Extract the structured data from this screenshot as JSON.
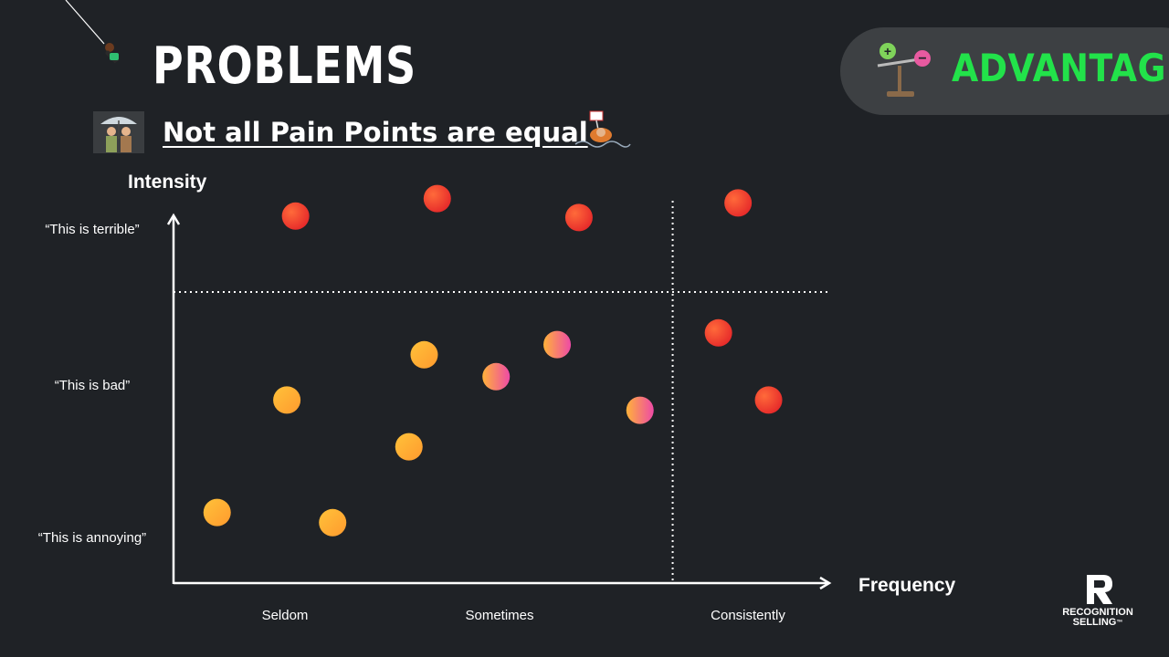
{
  "header": {
    "title": "PROBLEMS",
    "subtitle": "Not all Pain Points are equal",
    "badge_label": "ADVANTAGE",
    "brand_line1": "RECOGNITION",
    "brand_line2": "SELLING",
    "brand_mark": "™"
  },
  "colors": {
    "background": "#1f2226",
    "badge_text": "#22e24a",
    "badge_bg": "#3d4043",
    "dot_red": "#f0372a",
    "dot_orange": "#ffb234",
    "dot_pink": "#f2539a"
  },
  "chart_data": {
    "type": "scatter",
    "xlabel": "Frequency",
    "ylabel": "Intensity",
    "x_ticks": [
      "Seldom",
      "Sometimes",
      "Consistently"
    ],
    "y_ticks": [
      "“This is annoying”",
      "“This is bad”",
      "“This is terrible”"
    ],
    "xlim": [
      0,
      3
    ],
    "ylim": [
      0,
      3
    ],
    "grid": false,
    "threshold_lines": {
      "x": 2.29,
      "y": 2.0
    },
    "points": [
      {
        "x": 0.56,
        "y": 2.52,
        "color": "red"
      },
      {
        "x": 1.21,
        "y": 2.64,
        "color": "red"
      },
      {
        "x": 1.86,
        "y": 2.51,
        "color": "red"
      },
      {
        "x": 2.59,
        "y": 2.61,
        "color": "red"
      },
      {
        "x": 2.5,
        "y": 1.72,
        "color": "red"
      },
      {
        "x": 2.73,
        "y": 1.26,
        "color": "red"
      },
      {
        "x": 0.2,
        "y": 0.49,
        "color": "orange"
      },
      {
        "x": 0.52,
        "y": 1.26,
        "color": "orange"
      },
      {
        "x": 0.73,
        "y": 0.42,
        "color": "orange"
      },
      {
        "x": 1.08,
        "y": 0.94,
        "color": "orange"
      },
      {
        "x": 1.15,
        "y": 1.57,
        "color": "orange"
      },
      {
        "x": 1.48,
        "y": 1.42,
        "color": "pink"
      },
      {
        "x": 1.76,
        "y": 1.64,
        "color": "pink"
      },
      {
        "x": 2.14,
        "y": 1.19,
        "color": "pink"
      }
    ]
  }
}
